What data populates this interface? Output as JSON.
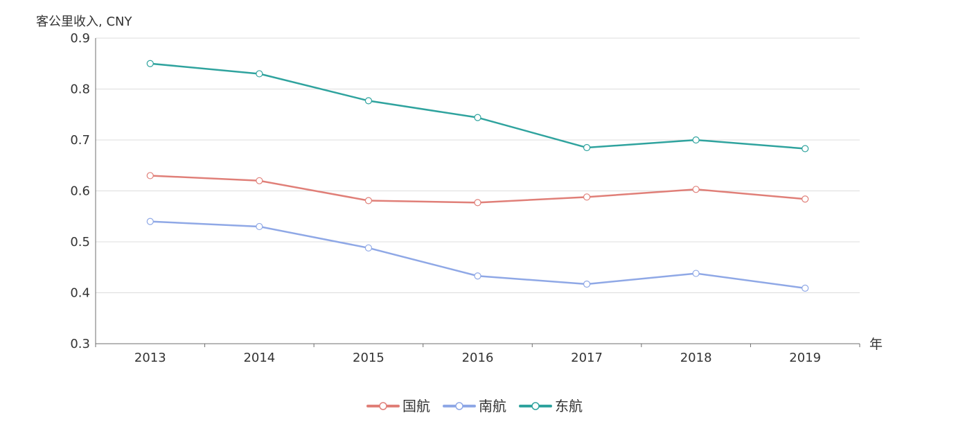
{
  "chart_data": {
    "type": "line",
    "title": "",
    "ylabel": "客公里收入, CNY",
    "xlabel": "年",
    "categories": [
      "2013",
      "2014",
      "2015",
      "2016",
      "2017",
      "2018",
      "2019"
    ],
    "ylim": [
      0.3,
      0.9
    ],
    "yticks": [
      "0.3",
      "0.4",
      "0.5",
      "0.6",
      "0.7",
      "0.8",
      "0.9"
    ],
    "grid": true,
    "legend_position": "bottom-center",
    "series": [
      {
        "name": "国航",
        "color": "#e07f78",
        "values": [
          0.63,
          0.62,
          0.581,
          0.577,
          0.588,
          0.603,
          0.584
        ]
      },
      {
        "name": "南航",
        "color": "#8fa8e6",
        "values": [
          0.54,
          0.53,
          0.488,
          0.433,
          0.417,
          0.438,
          0.409
        ]
      },
      {
        "name": "东航",
        "color": "#2fa39e",
        "values": [
          0.85,
          0.83,
          0.777,
          0.744,
          0.685,
          0.7,
          0.683
        ]
      }
    ]
  }
}
